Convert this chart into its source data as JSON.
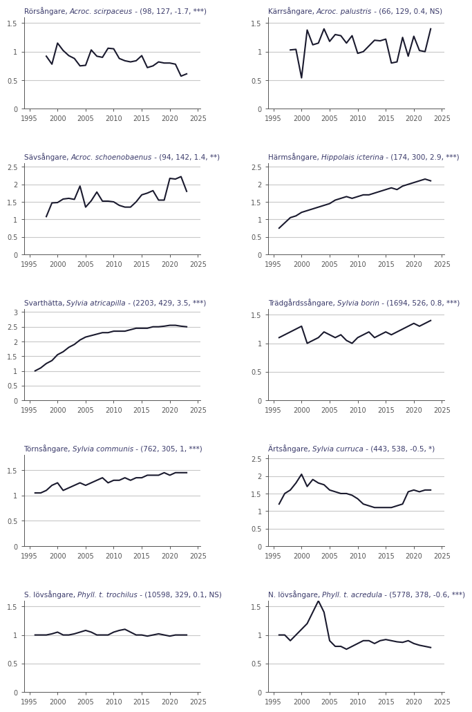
{
  "plots": [
    {
      "title_plain": "Rörsångare, ",
      "title_italic": "Acroc. scirpaceus",
      "title_rest": " - (98, 127, -1.7, ***)",
      "ylim": [
        0.0,
        1.6
      ],
      "yticks": [
        0.0,
        0.5,
        1.0,
        1.5
      ],
      "hlines": [
        0.5,
        1.0,
        1.5
      ],
      "years": [
        1998,
        1999,
        2000,
        2001,
        2002,
        2003,
        2004,
        2005,
        2006,
        2007,
        2008,
        2009,
        2010,
        2011,
        2012,
        2013,
        2014,
        2015,
        2016,
        2017,
        2018,
        2019,
        2020,
        2021,
        2022,
        2023
      ],
      "values": [
        0.92,
        0.78,
        1.15,
        1.02,
        0.93,
        0.88,
        0.75,
        0.76,
        1.03,
        0.92,
        0.9,
        1.06,
        1.05,
        0.88,
        0.84,
        0.82,
        0.84,
        0.93,
        0.72,
        0.75,
        0.82,
        0.8,
        0.8,
        0.78,
        0.57,
        0.61
      ]
    },
    {
      "title_plain": "Kärrsångare, ",
      "title_italic": "Acroc. palustris",
      "title_rest": " - (66, 129, 0.4, NS)",
      "ylim": [
        0.0,
        1.6
      ],
      "yticks": [
        0.0,
        0.5,
        1.0,
        1.5
      ],
      "hlines": [
        0.5,
        1.0,
        1.5
      ],
      "years": [
        1998,
        1999,
        2000,
        2001,
        2002,
        2003,
        2004,
        2005,
        2006,
        2007,
        2008,
        2009,
        2010,
        2011,
        2012,
        2013,
        2014,
        2015,
        2016,
        2017,
        2018,
        2019,
        2020,
        2021,
        2022,
        2023
      ],
      "values": [
        1.03,
        1.04,
        0.54,
        1.38,
        1.12,
        1.15,
        1.4,
        1.18,
        1.3,
        1.28,
        1.15,
        1.28,
        0.97,
        1.0,
        1.1,
        1.2,
        1.19,
        1.22,
        0.8,
        0.82,
        1.25,
        0.92,
        1.27,
        1.02,
        1.0,
        1.4
      ]
    },
    {
      "title_plain": "Sävsångare, ",
      "title_italic": "Acroc. schoenobaenus",
      "title_rest": " - (94, 142, 1.4, **)",
      "ylim": [
        0.0,
        2.6
      ],
      "yticks": [
        0.0,
        0.5,
        1.0,
        1.5,
        2.0,
        2.5
      ],
      "hlines": [
        0.5,
        1.0,
        1.5,
        2.0,
        2.5
      ],
      "years": [
        1998,
        1999,
        2000,
        2001,
        2002,
        2003,
        2004,
        2005,
        2006,
        2007,
        2008,
        2009,
        2010,
        2011,
        2012,
        2013,
        2014,
        2015,
        2016,
        2017,
        2018,
        2019,
        2020,
        2021,
        2022,
        2023
      ],
      "values": [
        1.08,
        1.47,
        1.48,
        1.58,
        1.6,
        1.57,
        1.95,
        1.35,
        1.53,
        1.78,
        1.52,
        1.52,
        1.5,
        1.4,
        1.35,
        1.35,
        1.5,
        1.7,
        1.75,
        1.82,
        1.55,
        1.55,
        2.17,
        2.15,
        2.22,
        1.8
      ]
    },
    {
      "title_plain": "Härmsångare, ",
      "title_italic": "Hippolais icterina",
      "title_rest": " - (174, 300, 2.9, ***)",
      "ylim": [
        0.0,
        2.6
      ],
      "yticks": [
        0.0,
        0.5,
        1.0,
        1.5,
        2.0,
        2.5
      ],
      "hlines": [
        0.5,
        1.0,
        1.5,
        2.0,
        2.5
      ],
      "years": [
        1996,
        1997,
        1998,
        1999,
        2000,
        2001,
        2002,
        2003,
        2004,
        2005,
        2006,
        2007,
        2008,
        2009,
        2010,
        2011,
        2012,
        2013,
        2014,
        2015,
        2016,
        2017,
        2018,
        2019,
        2020,
        2021,
        2022,
        2023
      ],
      "values": [
        0.75,
        0.9,
        1.05,
        1.1,
        1.2,
        1.25,
        1.3,
        1.35,
        1.4,
        1.45,
        1.55,
        1.6,
        1.65,
        1.6,
        1.65,
        1.7,
        1.7,
        1.75,
        1.8,
        1.85,
        1.9,
        1.85,
        1.95,
        2.0,
        2.05,
        2.1,
        2.15,
        2.1
      ]
    },
    {
      "title_plain": "Svarthätta, ",
      "title_italic": "Sylvia atricapilla",
      "title_rest": " - (2203, 429, 3.5, ***)",
      "ylim": [
        0.0,
        3.1
      ],
      "yticks": [
        0.0,
        0.5,
        1.0,
        1.5,
        2.0,
        2.5,
        3.0
      ],
      "hlines": [
        0.5,
        1.0,
        1.5,
        2.0,
        2.5,
        3.0
      ],
      "years": [
        1996,
        1997,
        1998,
        1999,
        2000,
        2001,
        2002,
        2003,
        2004,
        2005,
        2006,
        2007,
        2008,
        2009,
        2010,
        2011,
        2012,
        2013,
        2014,
        2015,
        2016,
        2017,
        2018,
        2019,
        2020,
        2021,
        2022,
        2023
      ],
      "values": [
        1.0,
        1.1,
        1.25,
        1.35,
        1.55,
        1.65,
        1.8,
        1.9,
        2.05,
        2.15,
        2.2,
        2.25,
        2.3,
        2.3,
        2.35,
        2.35,
        2.35,
        2.4,
        2.45,
        2.45,
        2.45,
        2.5,
        2.5,
        2.52,
        2.55,
        2.55,
        2.52,
        2.5
      ]
    },
    {
      "title_plain": "Trädgårdssångare, ",
      "title_italic": "Sylvia borin",
      "title_rest": " - (1694, 526, 0.8, ***)",
      "ylim": [
        0.0,
        1.6
      ],
      "yticks": [
        0.0,
        0.5,
        1.0,
        1.5
      ],
      "hlines": [
        0.5,
        1.0,
        1.5
      ],
      "years": [
        1996,
        1997,
        1998,
        1999,
        2000,
        2001,
        2002,
        2003,
        2004,
        2005,
        2006,
        2007,
        2008,
        2009,
        2010,
        2011,
        2012,
        2013,
        2014,
        2015,
        2016,
        2017,
        2018,
        2019,
        2020,
        2021,
        2022,
        2023
      ],
      "values": [
        1.1,
        1.15,
        1.2,
        1.25,
        1.3,
        1.0,
        1.05,
        1.1,
        1.2,
        1.15,
        1.1,
        1.15,
        1.05,
        1.0,
        1.1,
        1.15,
        1.2,
        1.1,
        1.15,
        1.2,
        1.15,
        1.2,
        1.25,
        1.3,
        1.35,
        1.3,
        1.35,
        1.4
      ]
    },
    {
      "title_plain": "Törnsångare, ",
      "title_italic": "Sylvia communis",
      "title_rest": " - (762, 305, 1, ***)",
      "ylim": [
        0.0,
        1.8
      ],
      "yticks": [
        0.0,
        0.5,
        1.0,
        1.5
      ],
      "hlines": [
        0.5,
        1.0,
        1.5
      ],
      "years": [
        1996,
        1997,
        1998,
        1999,
        2000,
        2001,
        2002,
        2003,
        2004,
        2005,
        2006,
        2007,
        2008,
        2009,
        2010,
        2011,
        2012,
        2013,
        2014,
        2015,
        2016,
        2017,
        2018,
        2019,
        2020,
        2021,
        2022,
        2023
      ],
      "values": [
        1.05,
        1.05,
        1.1,
        1.2,
        1.25,
        1.1,
        1.15,
        1.2,
        1.25,
        1.2,
        1.25,
        1.3,
        1.35,
        1.25,
        1.3,
        1.3,
        1.35,
        1.3,
        1.35,
        1.35,
        1.4,
        1.4,
        1.4,
        1.45,
        1.4,
        1.45,
        1.45,
        1.45
      ]
    },
    {
      "title_plain": "Ärtsångare, ",
      "title_italic": "Sylvia curruca",
      "title_rest": " - (443, 538, -0.5, *)",
      "ylim": [
        0.0,
        2.6
      ],
      "yticks": [
        0.0,
        0.5,
        1.0,
        1.5,
        2.0,
        2.5
      ],
      "hlines": [
        0.5,
        1.0,
        1.5,
        2.0,
        2.5
      ],
      "years": [
        1996,
        1997,
        1998,
        1999,
        2000,
        2001,
        2002,
        2003,
        2004,
        2005,
        2006,
        2007,
        2008,
        2009,
        2010,
        2011,
        2012,
        2013,
        2014,
        2015,
        2016,
        2017,
        2018,
        2019,
        2020,
        2021,
        2022,
        2023
      ],
      "values": [
        1.2,
        1.5,
        1.6,
        1.8,
        2.05,
        1.7,
        1.9,
        1.8,
        1.75,
        1.6,
        1.55,
        1.5,
        1.5,
        1.45,
        1.35,
        1.2,
        1.15,
        1.1,
        1.1,
        1.1,
        1.1,
        1.15,
        1.2,
        1.55,
        1.6,
        1.55,
        1.6,
        1.6
      ]
    },
    {
      "title_plain": "S. lövsångare, ",
      "title_italic": "Phyll. t. trochilus",
      "title_rest": " - (10598, 329, 0.1, NS)",
      "ylim": [
        0.0,
        1.6
      ],
      "yticks": [
        0.0,
        0.5,
        1.0,
        1.5
      ],
      "hlines": [
        0.5,
        1.0,
        1.5
      ],
      "years": [
        1996,
        1997,
        1998,
        1999,
        2000,
        2001,
        2002,
        2003,
        2004,
        2005,
        2006,
        2007,
        2008,
        2009,
        2010,
        2011,
        2012,
        2013,
        2014,
        2015,
        2016,
        2017,
        2018,
        2019,
        2020,
        2021,
        2022,
        2023
      ],
      "values": [
        1.0,
        1.0,
        1.0,
        1.02,
        1.05,
        1.0,
        1.0,
        1.02,
        1.05,
        1.08,
        1.05,
        1.0,
        1.0,
        1.0,
        1.05,
        1.08,
        1.1,
        1.05,
        1.0,
        1.0,
        0.98,
        1.0,
        1.02,
        1.0,
        0.98,
        1.0,
        1.0,
        1.0
      ]
    },
    {
      "title_plain": "N. lövsångare, ",
      "title_italic": "Phyll. t. acredula",
      "title_rest": " - (5778, 378, -0.6, ***)",
      "ylim": [
        0.0,
        1.6
      ],
      "yticks": [
        0.0,
        0.5,
        1.0,
        1.5
      ],
      "hlines": [
        0.5,
        1.0,
        1.5
      ],
      "years": [
        1996,
        1997,
        1998,
        1999,
        2000,
        2001,
        2002,
        2003,
        2004,
        2005,
        2006,
        2007,
        2008,
        2009,
        2010,
        2011,
        2012,
        2013,
        2014,
        2015,
        2016,
        2017,
        2018,
        2019,
        2020,
        2021,
        2022,
        2023
      ],
      "values": [
        1.0,
        1.0,
        0.9,
        1.0,
        1.1,
        1.2,
        1.4,
        1.6,
        1.4,
        0.9,
        0.8,
        0.8,
        0.75,
        0.8,
        0.85,
        0.9,
        0.9,
        0.85,
        0.9,
        0.92,
        0.9,
        0.88,
        0.87,
        0.9,
        0.85,
        0.82,
        0.8,
        0.78
      ]
    }
  ],
  "line_color": "#1a1a2e",
  "hline_color": "#c8c8c8",
  "title_color": "#3a3a6a",
  "xticks": [
    1995,
    2000,
    2005,
    2010,
    2015,
    2020,
    2025
  ],
  "xlim": [
    1994,
    2025.5
  ],
  "background_color": "#ffffff",
  "tick_color": "#555555",
  "linewidth": 1.5,
  "title_fontsize": 7.5
}
